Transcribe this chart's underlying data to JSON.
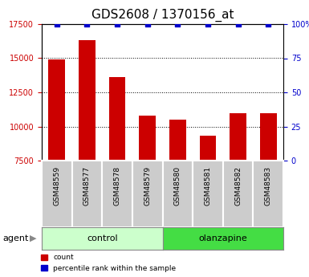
{
  "title": "GDS2608 / 1370156_at",
  "samples": [
    "GSM48559",
    "GSM48577",
    "GSM48578",
    "GSM48579",
    "GSM48580",
    "GSM48581",
    "GSM48582",
    "GSM48583"
  ],
  "counts": [
    14900,
    16300,
    13600,
    10800,
    10500,
    9300,
    11000,
    11000
  ],
  "percentiles": [
    100,
    100,
    100,
    100,
    100,
    100,
    100,
    100
  ],
  "bar_color": "#cc0000",
  "percentile_color": "#0000cc",
  "ylim_left": [
    7500,
    17500
  ],
  "ylim_right": [
    0,
    100
  ],
  "yticks_left": [
    7500,
    10000,
    12500,
    15000,
    17500
  ],
  "yticks_right": [
    0,
    25,
    50,
    75,
    100
  ],
  "ytick_labels_right": [
    "0",
    "25",
    "50",
    "75",
    "100%"
  ],
  "grid_lines": [
    10000,
    12500,
    15000
  ],
  "title_fontsize": 11,
  "tick_fontsize": 7,
  "sample_box_color": "#cccccc",
  "control_box_color": "#ccffcc",
  "olanzapine_box_color": "#44dd44",
  "control_label": "control",
  "olanzapine_label": "olanzapine",
  "agent_label": "agent",
  "legend_count": "count",
  "legend_percentile": "percentile rank within the sample"
}
